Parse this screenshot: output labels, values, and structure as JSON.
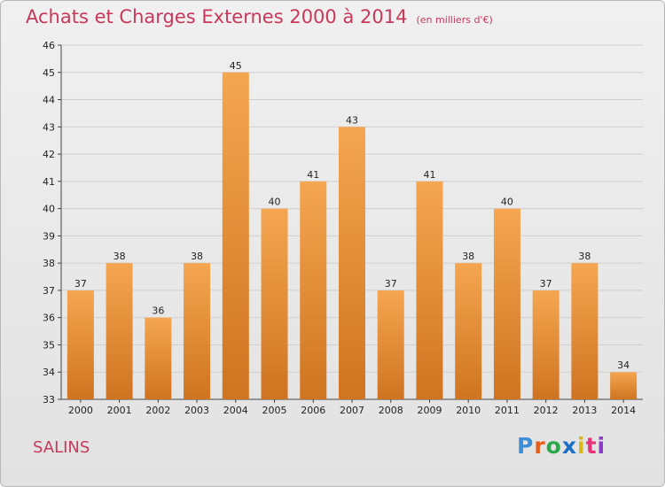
{
  "header": {
    "title": "Achats et Charges Externes 2000 à 2014",
    "subtitle": "(en milliers d'€)"
  },
  "footer": {
    "town": "SALINS",
    "brand": "Proxiti"
  },
  "colors": {
    "title": "#c8385a",
    "bar_light": "#f5a650",
    "bar_dark": "#cf7420",
    "grid": "#cfcfcf"
  },
  "chart_data": {
    "type": "bar",
    "categories": [
      "2000",
      "2001",
      "2002",
      "2003",
      "2004",
      "2005",
      "2006",
      "2007",
      "2008",
      "2009",
      "2010",
      "2011",
      "2012",
      "2013",
      "2014"
    ],
    "values": [
      37,
      38,
      36,
      38,
      45,
      40,
      41,
      43,
      37,
      41,
      38,
      40,
      37,
      38,
      34
    ],
    "ylim": [
      33,
      46
    ],
    "yticks": [
      33,
      34,
      35,
      36,
      37,
      38,
      39,
      40,
      41,
      42,
      43,
      44,
      45,
      46
    ],
    "grid": true,
    "xlabel": "",
    "ylabel": ""
  }
}
